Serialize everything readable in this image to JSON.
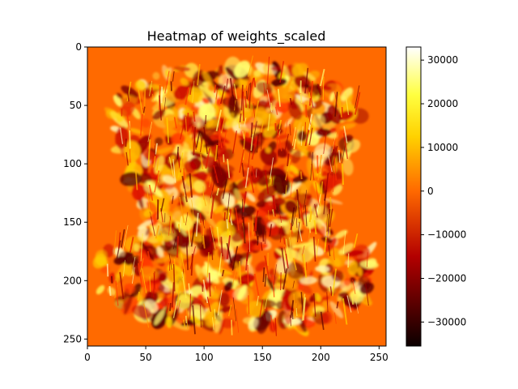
{
  "chart_data": {
    "type": "heatmap",
    "title": "Heatmap of weights_scaled",
    "xlabel": "",
    "ylabel": "",
    "xlim": [
      0,
      256
    ],
    "ylim": [
      256,
      0
    ],
    "x_ticks": [
      0,
      50,
      100,
      150,
      200,
      250
    ],
    "y_ticks": [
      0,
      50,
      100,
      150,
      200,
      250
    ],
    "x_tick_labels": [
      "0",
      "50",
      "100",
      "150",
      "200",
      "250"
    ],
    "y_tick_labels": [
      "0",
      "50",
      "100",
      "150",
      "200",
      "250"
    ],
    "colormap": "hot",
    "value_range": [
      -35500,
      33000
    ],
    "background_value": 0,
    "grid": false,
    "colorbar": {
      "placement": "right",
      "ticks": [
        30000,
        20000,
        10000,
        0,
        -10000,
        -20000,
        -30000
      ],
      "tick_labels": [
        "30000",
        "20000",
        "10000",
        "0",
        "−10000",
        "−20000",
        "−30000"
      ]
    }
  }
}
